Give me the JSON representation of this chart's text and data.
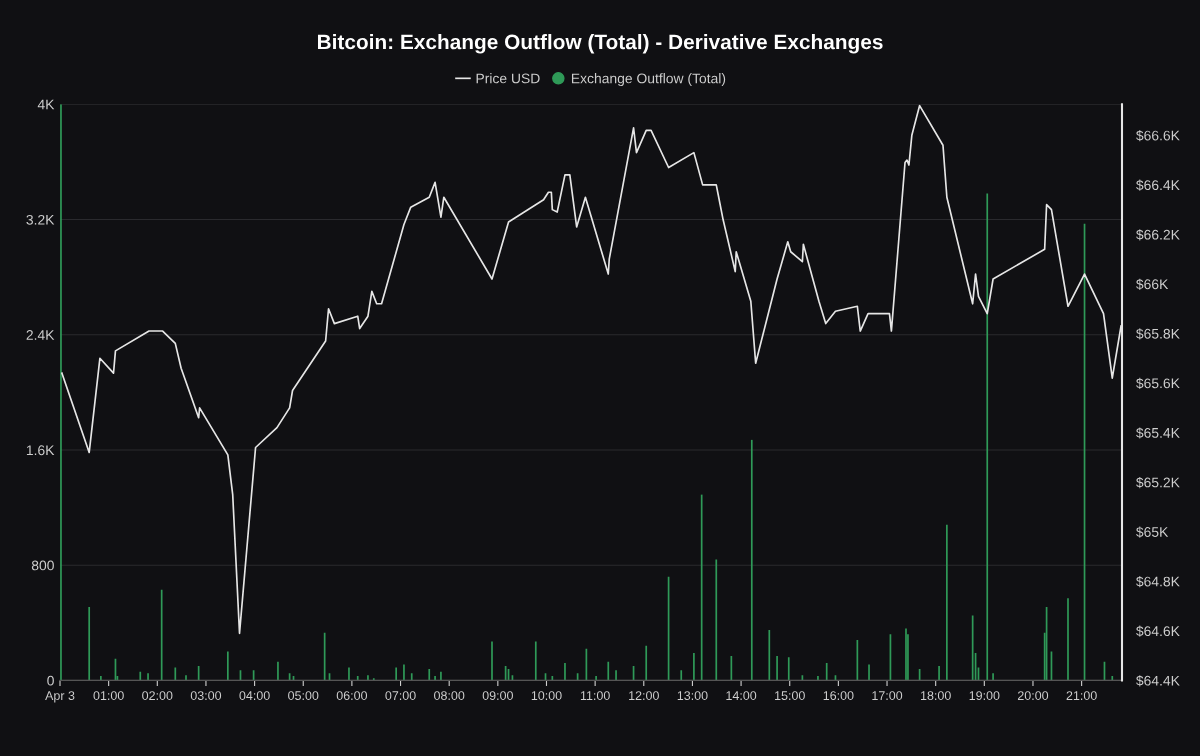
{
  "chart_data": {
    "type": "bar",
    "title": "Bitcoin: Exchange Outflow (Total) - Derivative Exchanges",
    "legend": "top",
    "grid": "y",
    "xlim": [
      0,
      21.83
    ],
    "xticks": [
      {
        "value": 0,
        "label": "Apr 3"
      },
      {
        "value": 1,
        "label": "01:00"
      },
      {
        "value": 2,
        "label": "02:00"
      },
      {
        "value": 3,
        "label": "03:00"
      },
      {
        "value": 4,
        "label": "04:00"
      },
      {
        "value": 5,
        "label": "05:00"
      },
      {
        "value": 6,
        "label": "06:00"
      },
      {
        "value": 7,
        "label": "07:00"
      },
      {
        "value": 8,
        "label": "08:00"
      },
      {
        "value": 9,
        "label": "09:00"
      },
      {
        "value": 10,
        "label": "10:00"
      },
      {
        "value": 11,
        "label": "11:00"
      },
      {
        "value": 12,
        "label": "12:00"
      },
      {
        "value": 13,
        "label": "13:00"
      },
      {
        "value": 14,
        "label": "14:00"
      },
      {
        "value": 15,
        "label": "15:00"
      },
      {
        "value": 16,
        "label": "16:00"
      },
      {
        "value": 17,
        "label": "17:00"
      },
      {
        "value": 18,
        "label": "18:00"
      },
      {
        "value": 19,
        "label": "19:00"
      },
      {
        "value": 20,
        "label": "20:00"
      },
      {
        "value": 21,
        "label": "21:00"
      }
    ],
    "ylim": [
      0,
      4000
    ],
    "yticks": [
      0,
      800,
      {
        "value": 1600,
        "label": "1.6K"
      },
      {
        "value": 2400,
        "label": "2.4K"
      },
      {
        "value": 3200,
        "label": "3.2K"
      },
      {
        "value": 4000,
        "label": "4K"
      }
    ],
    "y2lim": [
      64400,
      66725
    ],
    "y2ticks": [
      {
        "value": 64400,
        "label": "$64.4K"
      },
      {
        "value": 64600,
        "label": "$64.6K"
      },
      {
        "value": 64800,
        "label": "$64.8K"
      },
      {
        "value": 65000,
        "label": "$65K"
      },
      {
        "value": 65200,
        "label": "$65.2K"
      },
      {
        "value": 65400,
        "label": "$65.4K"
      },
      {
        "value": 65600,
        "label": "$65.6K"
      },
      {
        "value": 65800,
        "label": "$65.8K"
      },
      {
        "value": 66000,
        "label": "$66K"
      },
      {
        "value": 66200,
        "label": "$66.2K"
      },
      {
        "value": 66400,
        "label": "$66.4K"
      },
      {
        "value": 66600,
        "label": "$66.6K"
      }
    ],
    "series": [
      {
        "name": "Price USD",
        "type": "line",
        "axis": "y2",
        "color": "#e6e6e6",
        "x": [
          0.04,
          0.6,
          0.82,
          1.1,
          1.14,
          1.83,
          2.11,
          2.37,
          2.49,
          2.85,
          2.87,
          3.45,
          3.55,
          3.69,
          4.02,
          4.46,
          4.72,
          4.78,
          5.46,
          5.52,
          5.64,
          6.12,
          6.16,
          6.33,
          6.41,
          6.51,
          6.61,
          7.07,
          7.21,
          7.59,
          7.71,
          7.83,
          7.89,
          8.88,
          9.22,
          9.94,
          10.04,
          10.1,
          10.12,
          10.22,
          10.38,
          10.48,
          10.62,
          10.8,
          11.27,
          11.29,
          11.79,
          11.85,
          12.05,
          12.15,
          12.51,
          13.03,
          13.21,
          13.49,
          13.53,
          13.63,
          13.88,
          13.9,
          14.2,
          14.3,
          14.74,
          14.96,
          15.02,
          15.26,
          15.28,
          15.6,
          15.74,
          15.94,
          16.39,
          16.45,
          16.61,
          17.05,
          17.09,
          17.37,
          17.41,
          17.45,
          17.51,
          17.67,
          18.15,
          18.23,
          18.76,
          18.82,
          18.88,
          19.06,
          19.18,
          20.24,
          20.28,
          20.38,
          20.72,
          21.06,
          21.45,
          21.63,
          21.81
        ],
        "values": [
          65640,
          65320,
          65700,
          65640,
          65730,
          65810,
          65810,
          65760,
          65660,
          65460,
          65500,
          65310,
          65150,
          64590,
          65340,
          65420,
          65500,
          65570,
          65770,
          65900,
          65840,
          65870,
          65820,
          65870,
          65970,
          65920,
          65920,
          66240,
          66310,
          66350,
          66410,
          66270,
          66350,
          66020,
          66250,
          66340,
          66370,
          66370,
          66300,
          66290,
          66440,
          66440,
          66230,
          66350,
          66040,
          66100,
          66630,
          66530,
          66620,
          66620,
          66470,
          66530,
          66400,
          66400,
          66360,
          66260,
          66050,
          66130,
          65930,
          65680,
          66020,
          66170,
          66130,
          66090,
          66160,
          65930,
          65840,
          65890,
          65910,
          65810,
          65880,
          65880,
          65810,
          66490,
          66500,
          66480,
          66600,
          66720,
          66560,
          66350,
          65920,
          66040,
          65950,
          65880,
          66020,
          66140,
          66320,
          66300,
          65910,
          66040,
          65880,
          65620,
          65830
        ]
      },
      {
        "name": "Exchange Outflow (Total)",
        "axis": "y",
        "color": "#2f9a58",
        "x": [
          0.02,
          0.6,
          0.84,
          1.14,
          1.18,
          1.65,
          1.81,
          2.09,
          2.37,
          2.59,
          2.85,
          3.45,
          3.71,
          3.98,
          4.48,
          4.72,
          4.8,
          5.44,
          5.54,
          5.94,
          6.12,
          6.33,
          6.45,
          6.91,
          7.07,
          7.23,
          7.59,
          7.71,
          7.83,
          8.88,
          9.16,
          9.22,
          9.3,
          9.78,
          9.98,
          10.12,
          10.38,
          10.64,
          10.82,
          11.02,
          11.27,
          11.43,
          11.79,
          12.05,
          12.51,
          12.77,
          13.03,
          13.19,
          13.49,
          13.8,
          14.22,
          14.58,
          14.74,
          14.98,
          15.26,
          15.58,
          15.76,
          15.94,
          16.39,
          16.63,
          17.07,
          17.39,
          17.43,
          17.67,
          18.07,
          18.23,
          18.76,
          18.82,
          18.88,
          19.06,
          19.18,
          20.24,
          20.28,
          20.38,
          20.72,
          21.06,
          21.47,
          21.63
        ],
        "values": [
          4000,
          510,
          30,
          150,
          30,
          60,
          50,
          630,
          90,
          35,
          100,
          200,
          70,
          70,
          130,
          50,
          30,
          330,
          50,
          90,
          30,
          35,
          15,
          90,
          110,
          50,
          80,
          30,
          60,
          270,
          100,
          80,
          35,
          270,
          50,
          30,
          120,
          50,
          220,
          30,
          130,
          70,
          100,
          240,
          720,
          70,
          190,
          1290,
          840,
          170,
          1670,
          350,
          170,
          160,
          35,
          30,
          120,
          35,
          280,
          110,
          320,
          360,
          320,
          80,
          100,
          1080,
          450,
          190,
          90,
          3380,
          50,
          330,
          510,
          200,
          570,
          3170,
          130,
          30
        ]
      }
    ]
  }
}
